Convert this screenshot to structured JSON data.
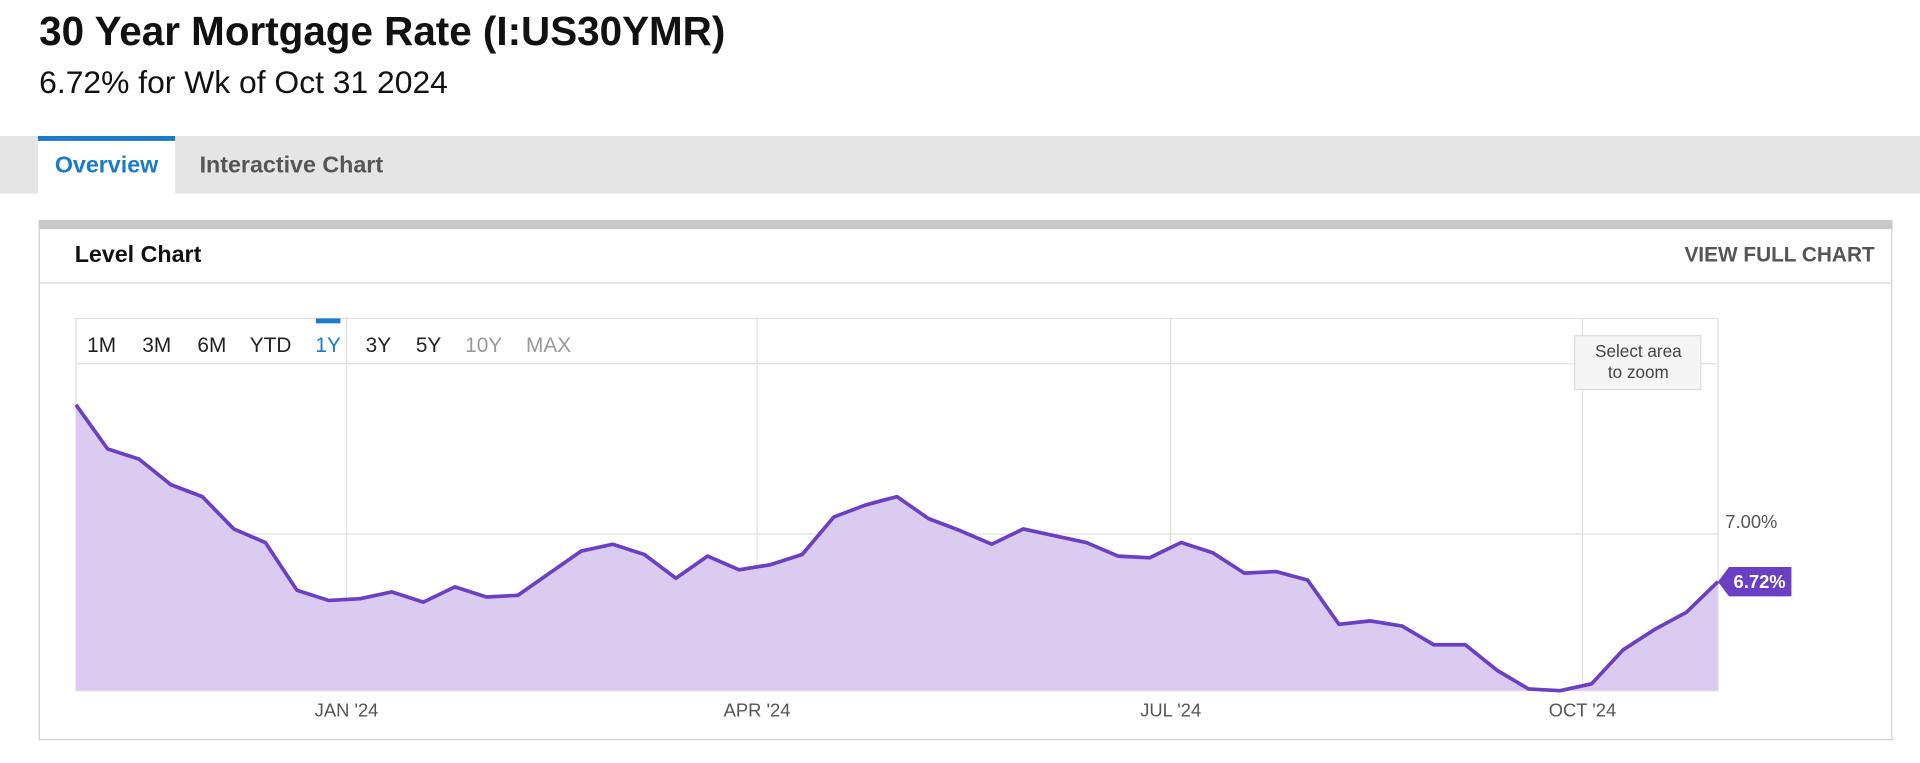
{
  "header": {
    "title": "30 Year Mortgage Rate (I:US30YMR)",
    "subtitle": "6.72% for Wk of Oct 31 2024"
  },
  "tabs": [
    {
      "label": "Overview",
      "active": true
    },
    {
      "label": "Interactive Chart",
      "active": false
    }
  ],
  "panel": {
    "title": "Level Chart",
    "link": "VIEW FULL CHART"
  },
  "range_buttons": [
    {
      "label": "1M",
      "state": "normal"
    },
    {
      "label": "3M",
      "state": "normal"
    },
    {
      "label": "6M",
      "state": "normal"
    },
    {
      "label": "YTD",
      "state": "normal"
    },
    {
      "label": "1Y",
      "state": "active"
    },
    {
      "label": "3Y",
      "state": "normal"
    },
    {
      "label": "5Y",
      "state": "normal"
    },
    {
      "label": "10Y",
      "state": "disabled"
    },
    {
      "label": "MAX",
      "state": "disabled"
    }
  ],
  "zoom_hint": [
    "Select area",
    "to zoom"
  ],
  "chart_data": {
    "type": "area",
    "values": [
      7.76,
      7.5,
      7.44,
      7.29,
      7.22,
      7.03,
      6.95,
      6.67,
      6.61,
      6.62,
      6.66,
      6.6,
      6.69,
      6.63,
      6.64,
      6.77,
      6.9,
      6.94,
      6.88,
      6.74,
      6.87,
      6.79,
      6.82,
      6.88,
      7.1,
      7.17,
      7.22,
      7.09,
      7.02,
      6.94,
      7.03,
      6.99,
      6.95,
      6.87,
      6.86,
      6.95,
      6.89,
      6.77,
      6.78,
      6.73,
      6.47,
      6.49,
      6.46,
      6.35,
      6.35,
      6.2,
      6.09,
      6.08,
      6.12,
      6.32,
      6.44,
      6.54,
      6.72
    ],
    "end_label": "6.72%",
    "color": "#6b3fc4",
    "fill_color": "#dccbf1",
    "xlim": [
      0,
      52
    ],
    "xticks": [
      {
        "value": 8.57,
        "label": "JAN '24"
      },
      {
        "value": 21.57,
        "label": "APR '24"
      },
      {
        "value": 34.67,
        "label": "JUL '24"
      },
      {
        "value": 47.71,
        "label": "OCT '24"
      }
    ],
    "ylim": [
      6.08,
      8.0
    ],
    "yticks": [
      {
        "value": 7,
        "label": "7.00%"
      }
    ],
    "grid": true
  }
}
